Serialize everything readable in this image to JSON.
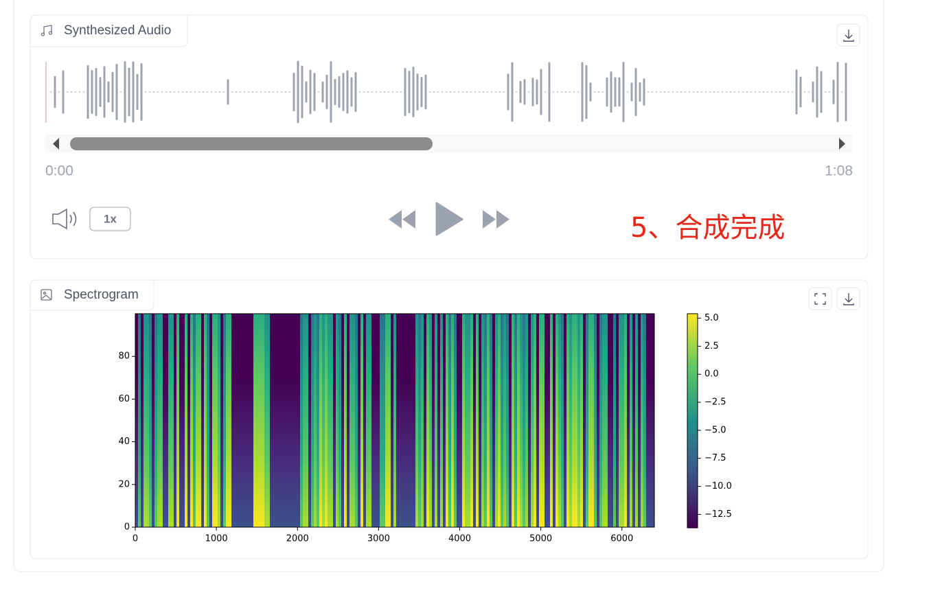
{
  "audio": {
    "label": "Synthesized Audio",
    "time_start": "0:00",
    "time_end": "1:08",
    "speed": "1x",
    "annotation": "5、合成完成"
  },
  "spectrogram": {
    "label": "Spectrogram",
    "plot": {
      "type": "heatmap",
      "xlim": [
        0,
        6400
      ],
      "xticks": [
        0,
        1000,
        2000,
        3000,
        4000,
        5000,
        6000
      ],
      "ylim": [
        0,
        100
      ],
      "yticks": [
        0,
        20,
        40,
        60,
        80
      ],
      "colorbar": {
        "lim": [
          -13.7,
          5.4
        ],
        "ticks": [
          {
            "value": 5,
            "label": "5.0"
          },
          {
            "value": 2.5,
            "label": "2.5"
          },
          {
            "value": 0,
            "label": "0.0"
          },
          {
            "value": -2.5,
            "label": "−2.5"
          },
          {
            "value": -5,
            "label": "−5.0"
          },
          {
            "value": -7.5,
            "label": "−7.5"
          },
          {
            "value": -10,
            "label": "−10.0"
          },
          {
            "value": -12.5,
            "label": "−12.5"
          }
        ]
      }
    }
  }
}
